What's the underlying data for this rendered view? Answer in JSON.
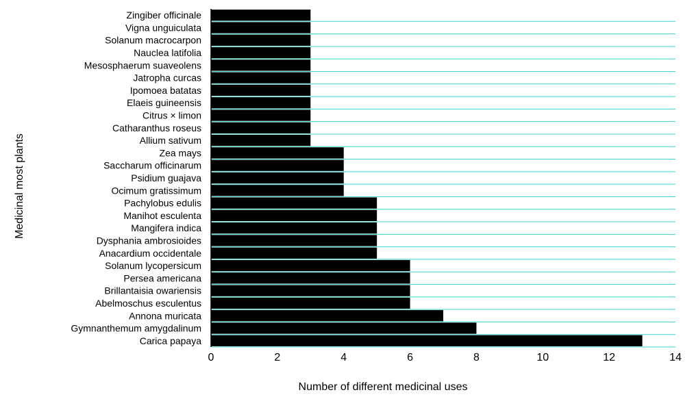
{
  "chart_data": {
    "type": "bar",
    "orientation": "horizontal",
    "categories": [
      "Zingiber officinale",
      "Vigna unguiculata",
      "Solanum macrocarpon",
      "Nauclea latifolia",
      "Mesosphaerum suaveolens",
      "Jatropha curcas",
      "Ipomoea batatas",
      "Elaeis guineensis",
      "Citrus × limon",
      "Catharanthus roseus",
      "Allium sativum",
      "Zea mays",
      "Saccharum officinarum",
      "Psidium guajava",
      "Ocimum gratissimum",
      "Pachylobus edulis",
      "Manihot esculenta",
      "Mangifera indica",
      "Dysphania ambrosioides",
      "Anacardium occidentale",
      "Solanum lycopersicum",
      "Persea americana",
      "Brillantaisia owariensis",
      "Abelmoschus esculentus",
      "Annona muricata",
      "Gymnanthemum amygdalinum",
      "Carica papaya"
    ],
    "values": [
      3,
      3,
      3,
      3,
      3,
      3,
      3,
      3,
      3,
      3,
      3,
      4,
      4,
      4,
      4,
      5,
      5,
      5,
      5,
      5,
      6,
      6,
      6,
      6,
      7,
      8,
      13
    ],
    "xlabel": "Number of different medicinal uses",
    "ylabel": "Medicinal most plants",
    "xlim": [
      0,
      14
    ],
    "xticks": [
      0,
      2,
      4,
      6,
      8,
      10,
      12,
      14
    ],
    "grid": true,
    "legend": "none",
    "colors": {
      "bar": "#000000",
      "grid": "#3fd3cf"
    }
  }
}
